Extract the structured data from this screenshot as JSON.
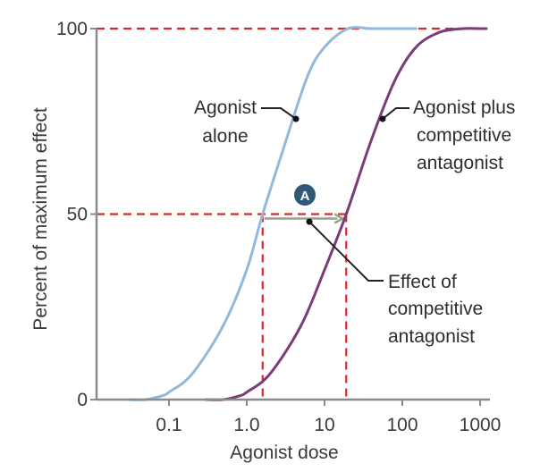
{
  "chart_data": {
    "type": "line",
    "x_scale": "log",
    "xlabel": "Agonist dose",
    "ylabel": "Percent of maximum effect",
    "xlim": [
      0.01,
      1500
    ],
    "ylim": [
      0,
      100
    ],
    "x_ticks": [
      {
        "value": 0.1,
        "label": "0.1"
      },
      {
        "value": 1,
        "label": "1.0"
      },
      {
        "value": 10,
        "label": "10"
      },
      {
        "value": 100,
        "label": "100"
      },
      {
        "value": 1000,
        "label": "1000"
      }
    ],
    "y_ticks": [
      {
        "value": 0,
        "label": "0"
      },
      {
        "value": 50,
        "label": "50"
      },
      {
        "value": 100,
        "label": "100"
      }
    ],
    "series": [
      {
        "name": "Agonist alone",
        "color": "#92b9dc",
        "x": [
          0.03,
          0.05,
          0.08,
          0.1,
          0.2,
          0.5,
          1,
          1.6,
          3,
          6,
          10,
          20,
          40,
          80,
          150
        ],
        "y": [
          0,
          0,
          1,
          2,
          7,
          20,
          35,
          50,
          68,
          87,
          95,
          100,
          100,
          100,
          100
        ]
      },
      {
        "name": "Agonist plus competitive antagonist",
        "color": "#7b3a78",
        "x": [
          0.3,
          0.5,
          0.8,
          1,
          2,
          5,
          10,
          19,
          40,
          80,
          150,
          300,
          600,
          1000,
          1200
        ],
        "y": [
          0,
          0,
          1,
          2,
          7,
          20,
          35,
          50,
          70,
          86,
          95,
          99,
          100,
          100,
          100
        ]
      }
    ],
    "reference_lines": {
      "color": "#d52b2b",
      "y_max": 100,
      "y_half": 50,
      "x_agonist_alone": 1.6,
      "x_with_antagonist": 19
    },
    "shift_arrow_color": "#93a184",
    "annotations": [
      {
        "id": "agonist-alone",
        "lines": [
          "Agonist",
          "alone"
        ]
      },
      {
        "id": "agonist-plus",
        "lines": [
          "Agonist plus",
          "competitive",
          "antagonist"
        ]
      },
      {
        "id": "effect",
        "lines": [
          "Effect of",
          "competitive",
          "antagonist"
        ]
      }
    ],
    "badge": {
      "label": "A",
      "color": "#2e5a78"
    }
  }
}
